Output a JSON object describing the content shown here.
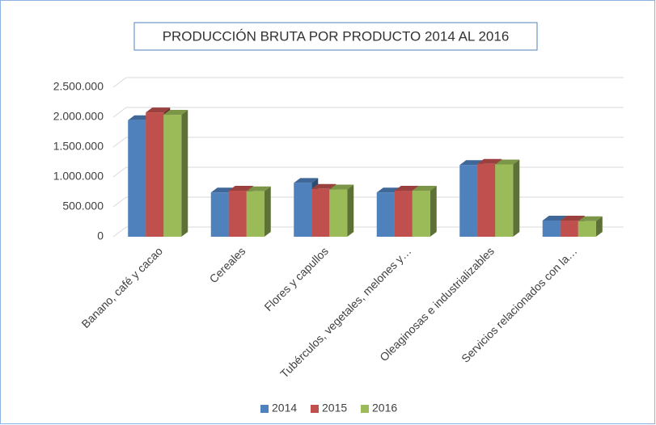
{
  "chart_data": {
    "type": "bar3d",
    "title": "PRODUCCIÓN BRUTA POR PRODUCTO 2014  AL 2016",
    "categories": [
      "Banano, café y cacao",
      "Cereales",
      "Flores y capullos",
      "Tubérculos, vegetales, melones y…",
      "Oleaginosas e industrializables",
      "Servicios relacionados con la…"
    ],
    "series": [
      {
        "name": "2014",
        "color": "#4f81bd",
        "values": [
          1950000,
          740000,
          900000,
          740000,
          1200000,
          270000
        ]
      },
      {
        "name": "2015",
        "color": "#c0504d",
        "values": [
          2080000,
          770000,
          800000,
          770000,
          1220000,
          270000
        ]
      },
      {
        "name": "2016",
        "color": "#9bbb59",
        "values": [
          2040000,
          760000,
          790000,
          770000,
          1210000,
          260000
        ]
      }
    ],
    "ylim": [
      0,
      2500000
    ],
    "yticks": [
      0,
      {
        "value": 500000,
        "label": "500.000"
      },
      {
        "value": 1000000,
        "label": "1.000.000"
      },
      {
        "value": 1500000,
        "label": "1.500.000"
      },
      {
        "value": 2000000,
        "label": "2.000.000"
      },
      {
        "value": 2500000,
        "label": "2.500.000"
      }
    ],
    "grid": true,
    "legend": "bottom"
  }
}
